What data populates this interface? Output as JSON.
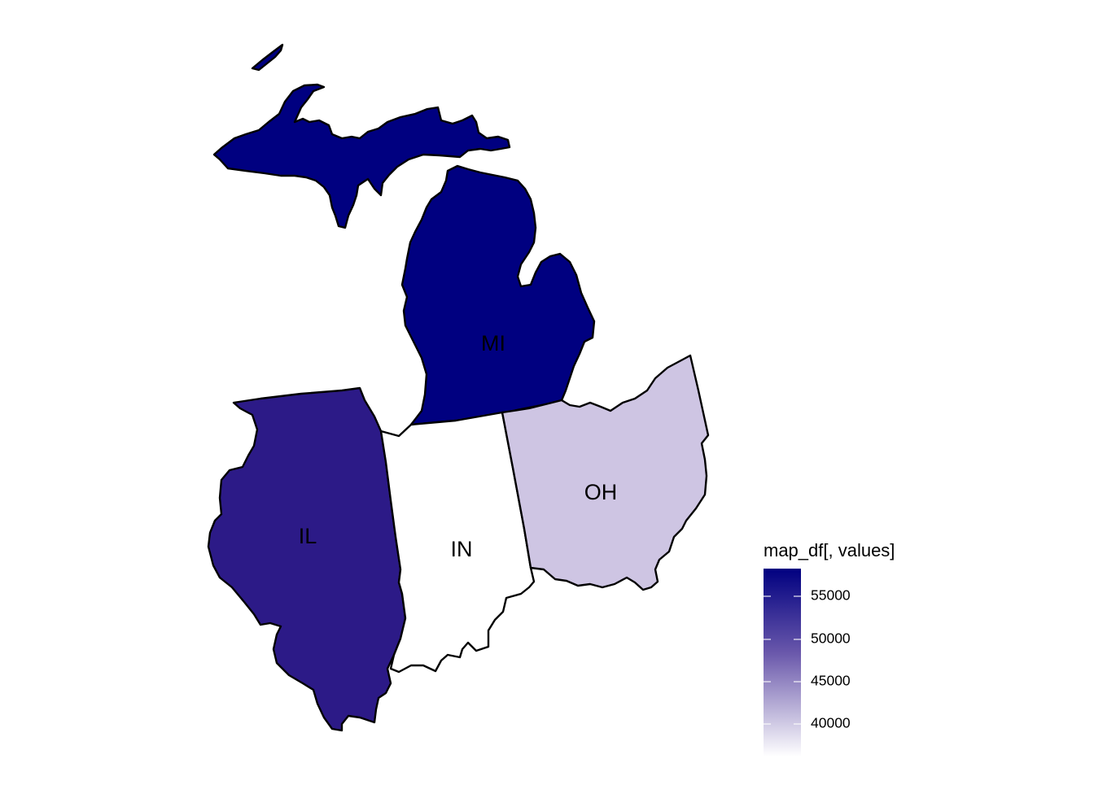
{
  "map": {
    "states": [
      {
        "id": "MI",
        "label": "MI",
        "value": 58000,
        "fill": "#000080"
      },
      {
        "id": "IL",
        "label": "IL",
        "value": 56000,
        "fill": "#2C1A87"
      },
      {
        "id": "IN",
        "label": "IN",
        "value": 36500,
        "fill": "#FFFFFF"
      },
      {
        "id": "OH",
        "label": "OH",
        "value": 44500,
        "fill": "#CEC5E3"
      }
    ]
  },
  "legend": {
    "title": "map_df[, values]",
    "ticks": [
      "55000",
      "50000",
      "45000",
      "40000"
    ],
    "gradient": {
      "high": "#000080",
      "mid": "#6A58AB",
      "low": "#FFFFFF"
    }
  }
}
